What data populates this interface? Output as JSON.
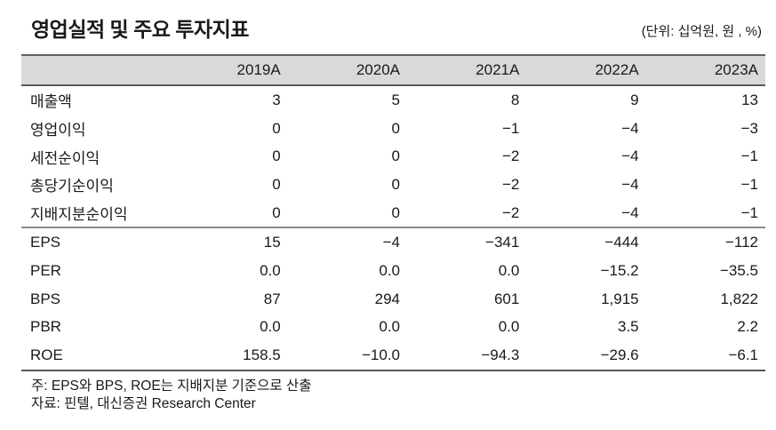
{
  "title": "영업실적 및 주요 투자지표",
  "unit_note": "(단위: 십억원, 원 , %)",
  "table": {
    "columns": [
      "",
      "2019A",
      "2020A",
      "2021A",
      "2022A",
      "2023A"
    ],
    "sections": [
      {
        "name": "operating-results",
        "rows": [
          {
            "label": "매출액",
            "values": [
              "3",
              "5",
              "8",
              "9",
              "13"
            ]
          },
          {
            "label": "영업이익",
            "values": [
              "0",
              "0",
              "−1",
              "−4",
              "−3"
            ]
          },
          {
            "label": "세전순이익",
            "values": [
              "0",
              "0",
              "−2",
              "−4",
              "−1"
            ]
          },
          {
            "label": "총당기순이익",
            "values": [
              "0",
              "0",
              "−2",
              "−4",
              "−1"
            ]
          },
          {
            "label": "지배지분순이익",
            "values": [
              "0",
              "0",
              "−2",
              "−4",
              "−1"
            ]
          }
        ]
      },
      {
        "name": "investment-indicators",
        "rows": [
          {
            "label": "EPS",
            "values": [
              "15",
              "−4",
              "−341",
              "−444",
              "−112"
            ]
          },
          {
            "label": "PER",
            "values": [
              "0.0",
              "0.0",
              "0.0",
              "−15.2",
              "−35.5"
            ]
          },
          {
            "label": "BPS",
            "values": [
              "87",
              "294",
              "601",
              "1,915",
              "1,822"
            ]
          },
          {
            "label": "PBR",
            "values": [
              "0.0",
              "0.0",
              "0.0",
              "3.5",
              "2.2"
            ]
          },
          {
            "label": "ROE",
            "values": [
              "158.5",
              "−10.0",
              "−94.3",
              "−29.6",
              "−6.1"
            ]
          }
        ]
      }
    ]
  },
  "footnotes": [
    "주: EPS와 BPS, ROE는 지배지분 기준으로 산출",
    "자료: 핀텔, 대신증권 Research Center"
  ],
  "colors": {
    "header_bg": "#d9d9d9",
    "rule_dark": "#58595b",
    "rule_mid": "#8a8b8d",
    "text": "#1a1a1a"
  }
}
